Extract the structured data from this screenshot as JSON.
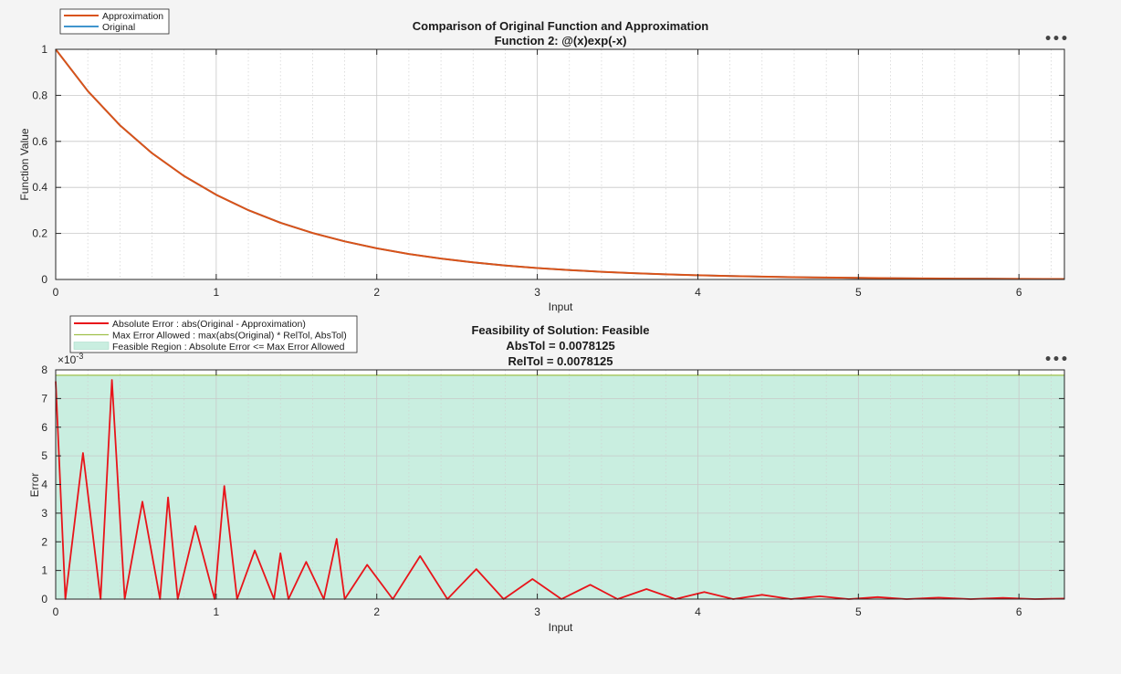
{
  "chart_data": [
    {
      "type": "line",
      "title": "Comparison of Original Function and Approximation",
      "subtitle": "Function 2: @(x)exp(-x)",
      "xlabel": "Input",
      "ylabel": "Function Value",
      "xlim": [
        0,
        6.2832
      ],
      "ylim": [
        0,
        1
      ],
      "xticks": [
        0,
        1,
        2,
        3,
        4,
        5,
        6
      ],
      "yticks": [
        0,
        0.2,
        0.4,
        0.6,
        0.8,
        1
      ],
      "ytick_labels": [
        "0",
        "0.2",
        "0.4",
        "0.6",
        "0.8",
        "1"
      ],
      "grid": true,
      "minor_grid": true,
      "legend": "top-left",
      "series": [
        {
          "name": "Approximation",
          "color": "#d95319",
          "x": [
            0,
            0.2,
            0.4,
            0.6,
            0.8,
            1.0,
            1.2,
            1.4,
            1.6,
            1.8,
            2.0,
            2.2,
            2.4,
            2.6,
            2.8,
            3.0,
            3.2,
            3.4,
            3.6,
            3.8,
            4.0,
            4.2,
            4.4,
            4.6,
            4.8,
            5.0,
            5.2,
            5.4,
            5.6,
            5.8,
            6.0,
            6.2832
          ],
          "y": [
            1.0,
            0.8187,
            0.6703,
            0.5488,
            0.4493,
            0.3679,
            0.3012,
            0.2466,
            0.2019,
            0.1653,
            0.1353,
            0.1108,
            0.0907,
            0.0743,
            0.0608,
            0.0498,
            0.0408,
            0.0334,
            0.0273,
            0.0224,
            0.0183,
            0.015,
            0.0123,
            0.0101,
            0.0082,
            0.0067,
            0.0055,
            0.0045,
            0.0037,
            0.003,
            0.0025,
            0.0019
          ]
        },
        {
          "name": "Original",
          "color": "#0072bd",
          "x": [
            0,
            0.2,
            0.4,
            0.6,
            0.8,
            1.0,
            1.2,
            1.4,
            1.6,
            1.8,
            2.0,
            2.2,
            2.4,
            2.6,
            2.8,
            3.0,
            3.2,
            3.4,
            3.6,
            3.8,
            4.0,
            4.2,
            4.4,
            4.6,
            4.8,
            5.0,
            5.2,
            5.4,
            5.6,
            5.8,
            6.0,
            6.2832
          ],
          "y": [
            1.0,
            0.8187,
            0.6703,
            0.5488,
            0.4493,
            0.3679,
            0.3012,
            0.2466,
            0.2019,
            0.1653,
            0.1353,
            0.1108,
            0.0907,
            0.0743,
            0.0608,
            0.0498,
            0.0408,
            0.0334,
            0.0273,
            0.0224,
            0.0183,
            0.015,
            0.0123,
            0.0101,
            0.0082,
            0.0067,
            0.0055,
            0.0045,
            0.0037,
            0.003,
            0.0025,
            0.0019
          ]
        }
      ]
    },
    {
      "type": "line",
      "title": "Feasibility of Solution: Feasible",
      "subtitle_lines": [
        "AbsTol = 0.0078125",
        "RelTol = 0.0078125"
      ],
      "xlabel": "Input",
      "ylabel": "Error",
      "y_exponent_label": "×10",
      "y_exponent": "-3",
      "xlim": [
        0,
        6.2832
      ],
      "ylim": [
        0,
        8
      ],
      "xticks": [
        0,
        1,
        2,
        3,
        4,
        5,
        6
      ],
      "yticks": [
        0,
        1,
        2,
        3,
        4,
        5,
        6,
        7,
        8
      ],
      "grid": true,
      "minor_grid": true,
      "legend": "top-left",
      "region": {
        "name": "Feasible Region : Absolute Error <= Max Error Allowed",
        "color": "#c9eee0",
        "edge": "#a8dcc8",
        "y_top": 7.8125
      },
      "threshold": {
        "name": "Max Error Allowed : max(abs(Original) * RelTol, AbsTol)",
        "color": "#9fc04a",
        "value": 7.8125
      },
      "series": [
        {
          "name": "Absolute Error : abs(Original - Approximation)",
          "color": "#e8141a",
          "x": [
            0,
            0.06,
            0.17,
            0.28,
            0.35,
            0.43,
            0.54,
            0.65,
            0.7,
            0.76,
            0.87,
            0.99,
            1.05,
            1.13,
            1.24,
            1.36,
            1.4,
            1.45,
            1.56,
            1.67,
            1.75,
            1.8,
            1.94,
            2.1,
            2.27,
            2.44,
            2.62,
            2.79,
            2.97,
            3.15,
            3.33,
            3.5,
            3.68,
            3.86,
            4.04,
            4.22,
            4.4,
            4.58,
            4.76,
            4.94,
            5.12,
            5.3,
            5.5,
            5.7,
            5.9,
            6.1,
            6.2832
          ],
          "y": [
            7.6,
            0,
            5.1,
            0,
            7.65,
            0,
            3.4,
            0,
            3.55,
            0,
            2.55,
            0,
            3.95,
            0,
            1.7,
            0,
            1.6,
            0,
            1.3,
            0,
            2.1,
            0,
            1.2,
            0,
            1.5,
            0,
            1.05,
            0,
            0.7,
            0,
            0.5,
            0,
            0.35,
            0,
            0.25,
            0,
            0.15,
            0,
            0.1,
            0,
            0.07,
            0,
            0.05,
            0,
            0.04,
            0,
            0.02
          ]
        }
      ]
    }
  ],
  "toolbar_icon": "ellipsis-icon",
  "toolbar_glyph": "•••"
}
